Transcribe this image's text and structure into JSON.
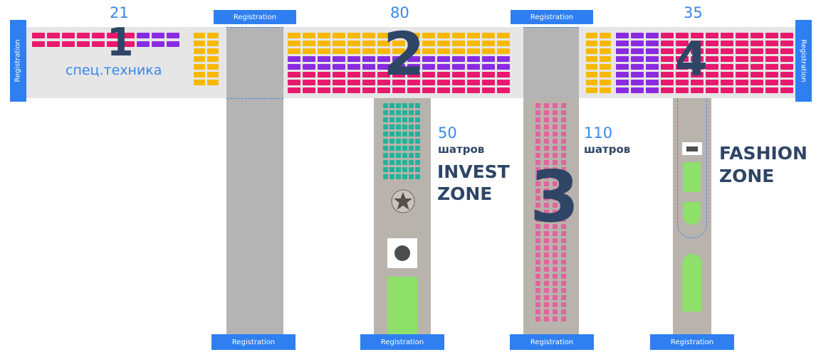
{
  "registration_label": "Registration",
  "counts": {
    "zone1": "21",
    "zone2": "80",
    "zone4": "35"
  },
  "zone_numbers": {
    "z1": "1",
    "z2": "2",
    "z3": "3",
    "z4": "4"
  },
  "zone1_label": "спец.техника",
  "invest": {
    "count": "50",
    "unit": "шатров",
    "title_line1": "INVEST",
    "title_line2": "ZONE"
  },
  "lane3": {
    "count": "110",
    "unit": "шатров"
  },
  "fashion": {
    "title_line1": "FASHION",
    "title_line2": "ZONE"
  },
  "colors": {
    "booth_pink": "#e8196e",
    "booth_purple": "#8a2be2",
    "booth_yellow": "#f8b800",
    "booth_teal": "#22b39a",
    "booth_rose": "#e2649d",
    "green": "#8ee06a",
    "registration": "#2f7ff0",
    "zone_number": "#2e4566",
    "count_text": "#3a86e8"
  },
  "icons": [
    "star-icon",
    "circle-icon",
    "screen-icon"
  ]
}
